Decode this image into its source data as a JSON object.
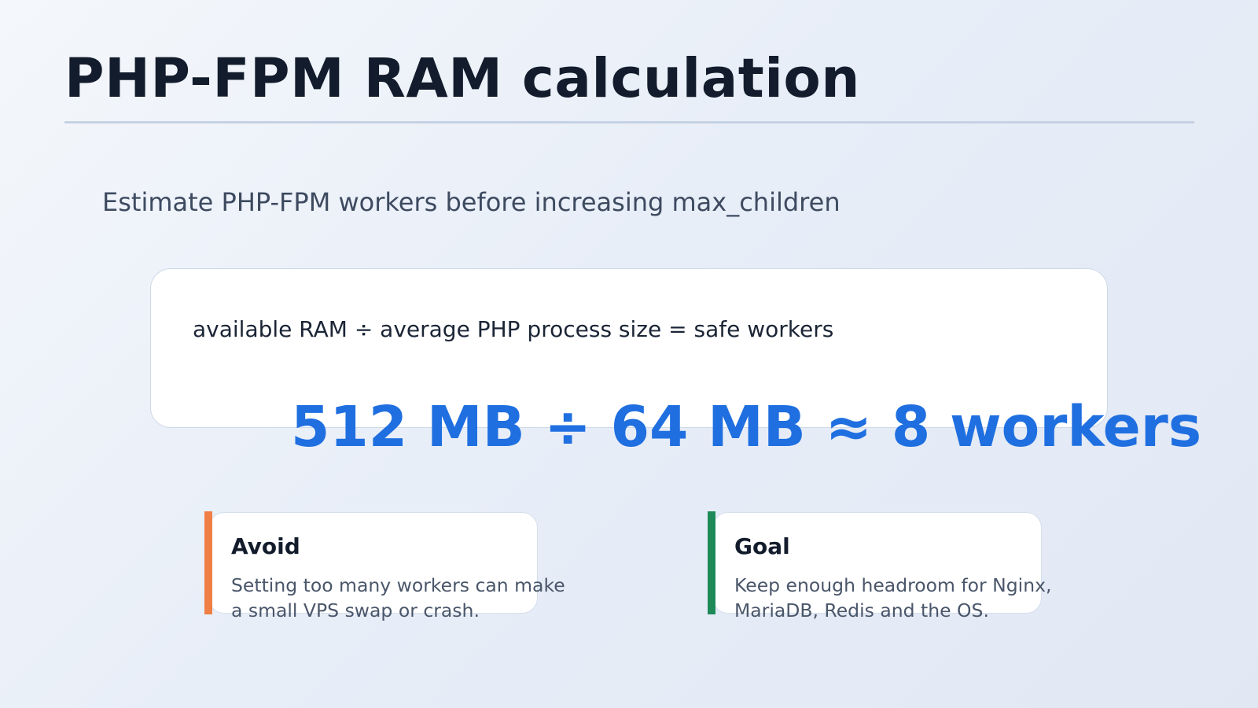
{
  "slide": {
    "title": "PHP-FPM RAM calculation",
    "subtitle": "Estimate PHP-FPM workers before increasing max_children",
    "formula": "available RAM ÷ average PHP process size = safe workers",
    "result": "512 MB ÷ 64 MB ≈ 8 workers",
    "notes": [
      {
        "heading": "Avoid",
        "body_lines": [
          "Setting too many workers can make",
          "a small VPS swap or crash."
        ],
        "accent_color": "#f07f45"
      },
      {
        "heading": "Goal",
        "body_lines": [
          "Keep enough headroom for Nginx,",
          "MariaDB, Redis and the OS."
        ],
        "accent_color": "#1e8a58"
      }
    ]
  },
  "colors": {
    "title": "#131c2c",
    "result": "#1f6fe0",
    "rule": "#c5d2e3"
  }
}
